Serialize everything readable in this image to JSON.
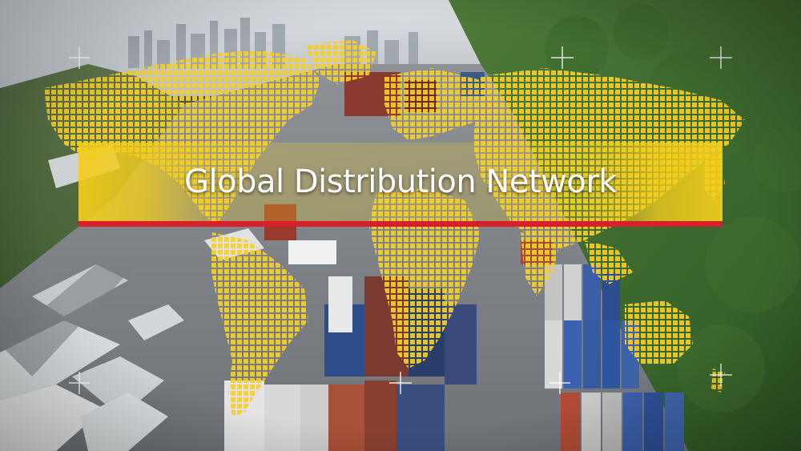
{
  "title": "Global Distribution Network",
  "colors": {
    "accent_yellow": "#F4CE1C",
    "accent_red": "#D8202A",
    "title_text": "#FFFFFF"
  },
  "scene": {
    "background": "aerial view of a container yard and hillside",
    "overlay": "dotted world map"
  }
}
